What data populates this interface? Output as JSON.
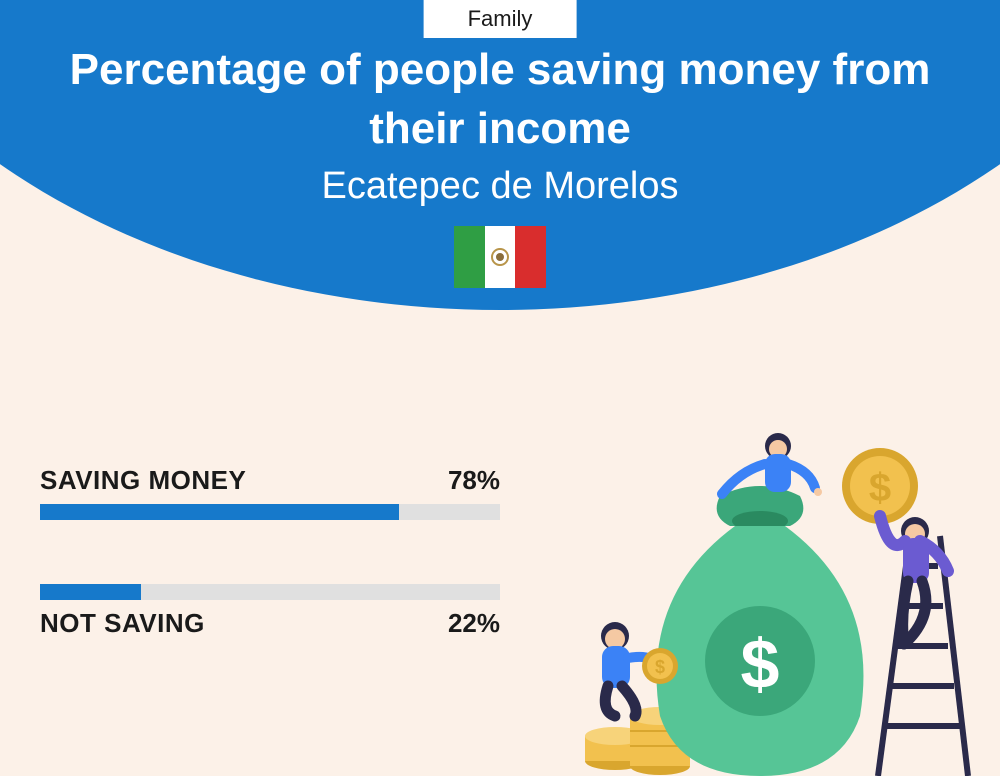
{
  "colors": {
    "header_bg": "#1679cb",
    "page_bg": "#fcf1e8",
    "bar_fill": "#1679cb",
    "bar_track": "#e0e0e0",
    "text_dark": "#1a1a1a",
    "flag_green": "#2f9e44",
    "flag_red": "#d92d2d",
    "bag_green": "#56c596",
    "bag_dark": "#3ba77a",
    "coin_gold": "#f2c14e",
    "coin_dark": "#d9a62e",
    "person_purple": "#6b5bd1",
    "person_blue": "#3b82f6",
    "skin": "#f5c9a3",
    "ladder": "#2a2a4a"
  },
  "tag": "Family",
  "title": "Percentage of people saving money from their income",
  "subtitle": "Ecatepec de Morelos",
  "bars": [
    {
      "label": "SAVING MONEY",
      "value": 78,
      "display": "78%",
      "label_first": true
    },
    {
      "label": "NOT SAVING",
      "value": 22,
      "display": "22%",
      "label_first": false
    }
  ],
  "typography": {
    "title_size": 44,
    "subtitle_size": 38,
    "label_size": 26
  }
}
